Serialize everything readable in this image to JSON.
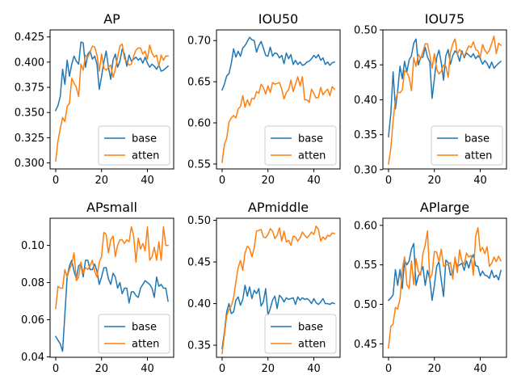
{
  "chart_data": [
    {
      "type": "line",
      "title": "AP",
      "xlim": [
        -2.45,
        51.45
      ],
      "ylim": [
        0.294,
        0.432
      ],
      "xticks": [
        0,
        20,
        40
      ],
      "yticks": [
        0.3,
        0.325,
        0.35,
        0.375,
        0.4,
        0.425
      ],
      "ytick_labels": [
        "0.300",
        "0.325",
        "0.350",
        "0.375",
        "0.400",
        "0.425"
      ],
      "legend": "lower-right",
      "series": [
        {
          "name": "base",
          "color": "#1f77b4",
          "values": [
            0.352,
            0.357,
            0.366,
            0.393,
            0.378,
            0.402,
            0.386,
            0.398,
            0.406,
            0.401,
            0.398,
            0.42,
            0.419,
            0.395,
            0.408,
            0.411,
            0.403,
            0.406,
            0.398,
            0.373,
            0.386,
            0.4,
            0.411,
            0.395,
            0.383,
            0.402,
            0.408,
            0.395,
            0.401,
            0.413,
            0.408,
            0.396,
            0.407,
            0.401,
            0.403,
            0.405,
            0.402,
            0.404,
            0.399,
            0.405,
            0.399,
            0.395,
            0.398,
            0.396,
            0.393,
            0.397,
            0.391,
            0.392,
            0.394,
            0.396
          ]
        },
        {
          "name": "atten",
          "color": "#ff7f0e",
          "values": [
            0.302,
            0.322,
            0.334,
            0.345,
            0.341,
            0.356,
            0.359,
            0.384,
            0.379,
            0.375,
            0.366,
            0.398,
            0.392,
            0.407,
            0.405,
            0.41,
            0.416,
            0.415,
            0.407,
            0.391,
            0.408,
            0.394,
            0.392,
            0.395,
            0.397,
            0.385,
            0.393,
            0.405,
            0.416,
            0.418,
            0.403,
            0.401,
            0.397,
            0.398,
            0.406,
            0.412,
            0.414,
            0.414,
            0.408,
            0.411,
            0.403,
            0.417,
            0.409,
            0.405,
            0.407,
            0.396,
            0.407,
            0.402,
            0.406,
            0.406
          ]
        }
      ]
    },
    {
      "type": "line",
      "title": "IOU50",
      "xlim": [
        -2.45,
        51.45
      ],
      "ylim": [
        0.544,
        0.713
      ],
      "xticks": [
        0,
        20,
        40
      ],
      "yticks": [
        0.55,
        0.6,
        0.65,
        0.7
      ],
      "ytick_labels": [
        "0.55",
        "0.60",
        "0.65",
        "0.70"
      ],
      "legend": "lower-right",
      "series": [
        {
          "name": "base",
          "color": "#1f77b4",
          "values": [
            0.64,
            0.647,
            0.657,
            0.66,
            0.672,
            0.69,
            0.68,
            0.687,
            0.681,
            0.691,
            0.694,
            0.699,
            0.704,
            0.701,
            0.7,
            0.686,
            0.694,
            0.699,
            0.691,
            0.682,
            0.681,
            0.692,
            0.681,
            0.685,
            0.684,
            0.679,
            0.682,
            0.672,
            0.685,
            0.678,
            0.683,
            0.671,
            0.676,
            0.671,
            0.674,
            0.67,
            0.671,
            0.674,
            0.675,
            0.678,
            0.682,
            0.679,
            0.683,
            0.676,
            0.679,
            0.671,
            0.674,
            0.67,
            0.673,
            0.674
          ]
        },
        {
          "name": "atten",
          "color": "#ff7f0e",
          "values": [
            0.552,
            0.574,
            0.581,
            0.601,
            0.606,
            0.609,
            0.606,
            0.617,
            0.62,
            0.633,
            0.619,
            0.628,
            0.621,
            0.63,
            0.629,
            0.638,
            0.636,
            0.647,
            0.643,
            0.635,
            0.645,
            0.637,
            0.649,
            0.647,
            0.648,
            0.649,
            0.641,
            0.629,
            0.637,
            0.64,
            0.652,
            0.638,
            0.647,
            0.656,
            0.645,
            0.656,
            0.628,
            0.628,
            0.625,
            0.641,
            0.636,
            0.63,
            0.631,
            0.643,
            0.634,
            0.638,
            0.641,
            0.633,
            0.644,
            0.641
          ]
        }
      ]
    },
    {
      "type": "line",
      "title": "IOU75",
      "xlim": [
        -2.45,
        51.45
      ],
      "ylim": [
        0.301,
        0.5
      ],
      "xticks": [
        0,
        20,
        40
      ],
      "yticks": [
        0.3,
        0.35,
        0.4,
        0.45,
        0.5
      ],
      "ytick_labels": [
        "0.30",
        "0.35",
        "0.40",
        "0.45",
        "0.50"
      ],
      "legend": "lower-right",
      "series": [
        {
          "name": "base",
          "color": "#1f77b4",
          "values": [
            0.347,
            0.38,
            0.44,
            0.387,
            0.413,
            0.448,
            0.43,
            0.455,
            0.44,
            0.457,
            0.463,
            0.481,
            0.487,
            0.45,
            0.46,
            0.461,
            0.475,
            0.461,
            0.454,
            0.402,
            0.43,
            0.46,
            0.471,
            0.453,
            0.428,
            0.463,
            0.472,
            0.451,
            0.463,
            0.47,
            0.466,
            0.455,
            0.47,
            0.46,
            0.467,
            0.464,
            0.461,
            0.466,
            0.459,
            0.463,
            0.459,
            0.451,
            0.456,
            0.452,
            0.445,
            0.454,
            0.445,
            0.449,
            0.452,
            0.455
          ]
        },
        {
          "name": "atten",
          "color": "#ff7f0e",
          "values": [
            0.308,
            0.33,
            0.37,
            0.399,
            0.411,
            0.41,
            0.414,
            0.442,
            0.439,
            0.432,
            0.413,
            0.46,
            0.448,
            0.465,
            0.459,
            0.469,
            0.48,
            0.48,
            0.464,
            0.445,
            0.466,
            0.444,
            0.437,
            0.441,
            0.45,
            0.448,
            0.432,
            0.467,
            0.48,
            0.487,
            0.465,
            0.472,
            0.467,
            0.462,
            0.47,
            0.477,
            0.475,
            0.483,
            0.472,
            0.47,
            0.46,
            0.479,
            0.471,
            0.466,
            0.471,
            0.481,
            0.491,
            0.466,
            0.481,
            0.478
          ]
        }
      ]
    },
    {
      "type": "line",
      "title": "APsmall",
      "xlim": [
        -2.45,
        51.45
      ],
      "ylim": [
        0.0398,
        0.1146
      ],
      "xticks": [
        0,
        20,
        40
      ],
      "yticks": [
        0.04,
        0.06,
        0.08,
        0.1
      ],
      "ytick_labels": [
        "0.04",
        "0.06",
        "0.08",
        "0.10"
      ],
      "legend": "lower-right",
      "series": [
        {
          "name": "base",
          "color": "#1f77b4",
          "values": [
            0.051,
            0.049,
            0.047,
            0.043,
            0.063,
            0.083,
            0.089,
            0.092,
            0.086,
            0.082,
            0.089,
            0.09,
            0.083,
            0.092,
            0.092,
            0.087,
            0.087,
            0.09,
            0.086,
            0.079,
            0.083,
            0.088,
            0.088,
            0.082,
            0.079,
            0.085,
            0.083,
            0.077,
            0.08,
            0.074,
            0.077,
            0.077,
            0.069,
            0.075,
            0.075,
            0.073,
            0.072,
            0.077,
            0.079,
            0.081,
            0.08,
            0.079,
            0.077,
            0.072,
            0.083,
            0.078,
            0.079,
            0.077,
            0.077,
            0.07
          ]
        },
        {
          "name": "atten",
          "color": "#ff7f0e",
          "values": [
            0.066,
            0.078,
            0.077,
            0.077,
            0.087,
            0.083,
            0.087,
            0.09,
            0.096,
            0.081,
            0.083,
            0.091,
            0.085,
            0.088,
            0.087,
            0.089,
            0.092,
            0.086,
            0.083,
            0.091,
            0.094,
            0.107,
            0.106,
            0.096,
            0.103,
            0.105,
            0.094,
            0.1,
            0.103,
            0.103,
            0.101,
            0.103,
            0.102,
            0.11,
            0.105,
            0.091,
            0.104,
            0.098,
            0.101,
            0.097,
            0.11,
            0.092,
            0.094,
            0.099,
            0.092,
            0.102,
            0.092,
            0.11,
            0.1,
            0.1
          ]
        }
      ]
    },
    {
      "type": "line",
      "title": "APmiddle",
      "xlim": [
        -2.45,
        51.45
      ],
      "ylim": [
        0.3355,
        0.5025
      ],
      "xticks": [
        0,
        20,
        40
      ],
      "yticks": [
        0.35,
        0.4,
        0.45,
        0.5
      ],
      "ytick_labels": [
        "0.35",
        "0.40",
        "0.45",
        "0.50"
      ],
      "legend": "lower-right",
      "series": [
        {
          "name": "base",
          "color": "#1f77b4",
          "values": [
            0.346,
            0.365,
            0.39,
            0.4,
            0.388,
            0.39,
            0.404,
            0.408,
            0.398,
            0.405,
            0.422,
            0.409,
            0.42,
            0.406,
            0.416,
            0.412,
            0.418,
            0.397,
            0.402,
            0.418,
            0.386,
            0.394,
            0.404,
            0.409,
            0.394,
            0.41,
            0.407,
            0.402,
            0.407,
            0.405,
            0.406,
            0.407,
            0.399,
            0.408,
            0.404,
            0.407,
            0.405,
            0.406,
            0.404,
            0.4,
            0.406,
            0.401,
            0.399,
            0.402,
            0.406,
            0.4,
            0.4,
            0.399,
            0.401,
            0.4
          ]
        },
        {
          "name": "atten",
          "color": "#ff7f0e",
          "values": [
            0.34,
            0.362,
            0.385,
            0.393,
            0.397,
            0.407,
            0.426,
            0.443,
            0.452,
            0.44,
            0.461,
            0.469,
            0.466,
            0.456,
            0.467,
            0.487,
            0.488,
            0.489,
            0.48,
            0.479,
            0.483,
            0.49,
            0.487,
            0.478,
            0.482,
            0.491,
            0.475,
            0.487,
            0.474,
            0.476,
            0.47,
            0.481,
            0.48,
            0.475,
            0.479,
            0.486,
            0.482,
            0.479,
            0.482,
            0.486,
            0.483,
            0.493,
            0.489,
            0.475,
            0.48,
            0.477,
            0.482,
            0.481,
            0.485,
            0.484
          ]
        }
      ]
    },
    {
      "type": "line",
      "title": "APlarge",
      "xlim": [
        -2.45,
        51.45
      ],
      "ylim": [
        0.433,
        0.609
      ],
      "xticks": [
        0,
        20,
        40
      ],
      "yticks": [
        0.45,
        0.5,
        0.55,
        0.6
      ],
      "ytick_labels": [
        "0.45",
        "0.50",
        "0.55",
        "0.60"
      ],
      "legend": "",
      "series": [
        {
          "name": "base",
          "color": "#1f77b4",
          "values": [
            0.505,
            0.508,
            0.512,
            0.544,
            0.524,
            0.544,
            0.52,
            0.556,
            0.55,
            0.555,
            0.57,
            0.577,
            0.524,
            0.536,
            0.54,
            0.548,
            0.524,
            0.543,
            0.532,
            0.505,
            0.524,
            0.548,
            0.554,
            0.531,
            0.51,
            0.556,
            0.553,
            0.537,
            0.54,
            0.556,
            0.548,
            0.55,
            0.552,
            0.543,
            0.555,
            0.546,
            0.557,
            0.563,
            0.549,
            0.548,
            0.536,
            0.542,
            0.537,
            0.536,
            0.533,
            0.543,
            0.534,
            0.537,
            0.531,
            0.543
          ]
        },
        {
          "name": "atten",
          "color": "#ff7f0e",
          "values": [
            0.445,
            0.472,
            0.475,
            0.496,
            0.494,
            0.507,
            0.544,
            0.56,
            0.525,
            0.52,
            0.555,
            0.525,
            0.558,
            0.542,
            0.537,
            0.564,
            0.575,
            0.593,
            0.532,
            0.538,
            0.567,
            0.566,
            0.554,
            0.57,
            0.548,
            0.55,
            0.55,
            0.553,
            0.532,
            0.56,
            0.54,
            0.569,
            0.555,
            0.55,
            0.565,
            0.56,
            0.562,
            0.537,
            0.586,
            0.597,
            0.567,
            0.572,
            0.564,
            0.573,
            0.548,
            0.552,
            0.56,
            0.554,
            0.561,
            0.555
          ]
        }
      ]
    }
  ]
}
